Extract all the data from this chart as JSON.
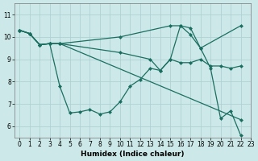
{
  "xlabel": "Humidex (Indice chaleur)",
  "xlim": [
    -0.5,
    23
  ],
  "ylim": [
    5.5,
    11.5
  ],
  "yticks": [
    6,
    7,
    8,
    9,
    10,
    11
  ],
  "xticks": [
    0,
    1,
    2,
    3,
    4,
    5,
    6,
    7,
    8,
    9,
    10,
    11,
    12,
    13,
    14,
    15,
    16,
    17,
    18,
    19,
    20,
    21,
    22,
    23
  ],
  "background_color": "#cce8e8",
  "grid_color": "#aacece",
  "line_color": "#1a6e60",
  "line_width": 0.9,
  "marker_size": 2.5,
  "lines": [
    {
      "x": [
        0,
        1,
        2,
        3,
        4,
        10,
        15,
        16,
        17,
        18,
        22
      ],
      "y": [
        10.3,
        10.15,
        9.65,
        9.7,
        9.7,
        10.0,
        10.5,
        10.5,
        10.1,
        9.5,
        10.5
      ]
    },
    {
      "x": [
        0,
        1,
        2,
        3,
        4,
        10,
        13,
        14,
        15,
        16,
        17,
        18,
        19,
        20,
        21,
        22
      ],
      "y": [
        10.3,
        10.15,
        9.65,
        9.7,
        9.7,
        9.3,
        9.0,
        8.5,
        9.0,
        8.85,
        8.85,
        9.0,
        8.7,
        8.7,
        8.6,
        8.7
      ]
    },
    {
      "x": [
        0,
        1,
        2,
        3,
        4,
        5,
        6,
        7,
        8,
        9,
        10,
        11,
        12,
        13,
        14,
        15,
        16,
        17,
        18,
        19,
        20,
        21,
        22
      ],
      "y": [
        10.3,
        10.15,
        9.65,
        9.7,
        7.8,
        6.6,
        6.65,
        6.75,
        6.55,
        6.65,
        7.1,
        7.8,
        8.1,
        8.6,
        8.5,
        9.0,
        10.5,
        10.4,
        9.5,
        8.6,
        6.35,
        6.7,
        5.6
      ]
    },
    {
      "x": [
        0,
        1,
        2,
        3,
        4,
        22
      ],
      "y": [
        10.3,
        10.15,
        9.65,
        9.7,
        9.7,
        6.3
      ]
    }
  ]
}
